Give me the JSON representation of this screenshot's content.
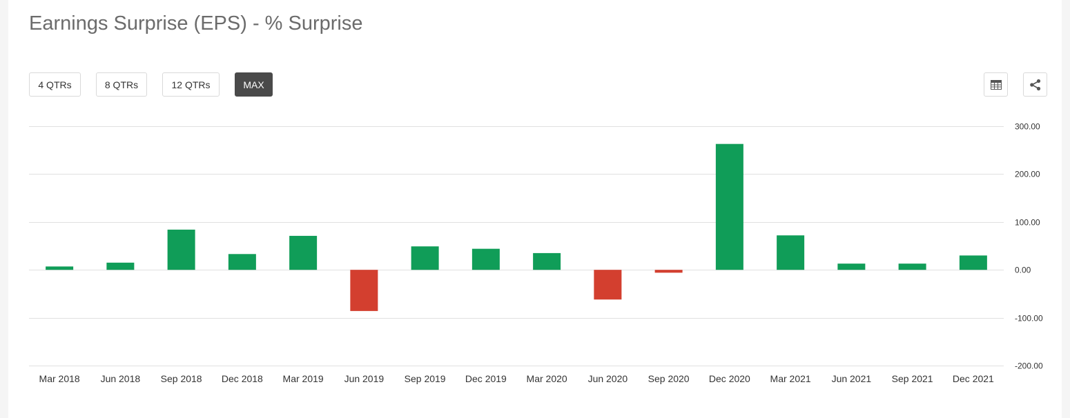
{
  "title": "Earnings Surprise (EPS) - % Surprise",
  "range_buttons": [
    {
      "label": "4 QTRs",
      "active": false
    },
    {
      "label": "8 QTRs",
      "active": false
    },
    {
      "label": "12 QTRs",
      "active": false
    },
    {
      "label": "MAX",
      "active": true
    }
  ],
  "icons": {
    "table": "table-icon",
    "share": "share-icon"
  },
  "colors": {
    "positive": "#109d58",
    "negative": "#d33f2f",
    "gridline": "#e0e0e0",
    "active_button": "#4a4a4a"
  },
  "chart_data": {
    "type": "bar",
    "title": "Earnings Surprise (EPS) - % Surprise",
    "xlabel": "",
    "ylabel": "",
    "categories": [
      "Mar 2018",
      "Jun 2018",
      "Sep 2018",
      "Dec 2018",
      "Mar 2019",
      "Jun 2019",
      "Sep 2019",
      "Dec 2019",
      "Mar 2020",
      "Jun 2020",
      "Sep 2020",
      "Dec 2020",
      "Mar 2021",
      "Jun 2021",
      "Sep 2021",
      "Dec 2021"
    ],
    "values": [
      7,
      15,
      84,
      33,
      71,
      -86,
      49,
      44,
      35,
      -62,
      -6,
      263,
      72,
      13,
      13,
      30
    ],
    "ylim": [
      -200,
      300
    ],
    "yticks": [
      300,
      200,
      100,
      0,
      -100,
      -200
    ],
    "ytick_labels": [
      "300.00",
      "200.00",
      "100.00",
      "0.00",
      "-100.00",
      "-200.00"
    ],
    "y_axis_position": "right",
    "grid": true,
    "legend": "none"
  }
}
